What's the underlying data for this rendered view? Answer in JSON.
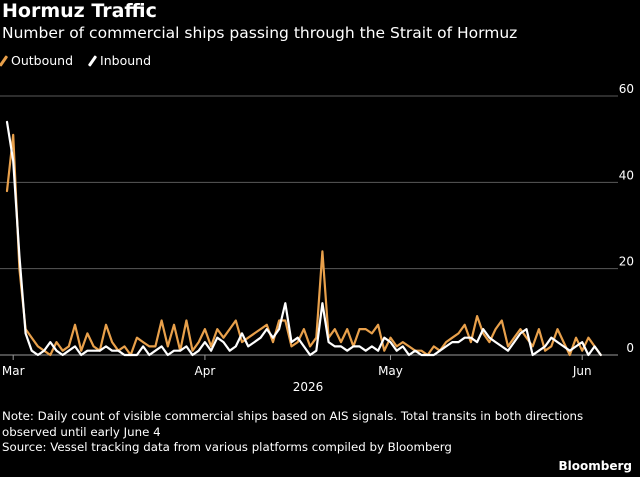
{
  "title": "Hormuz Traffic",
  "subtitle": "Number of commercial ships passing through the Strait of Hormuz",
  "legend": [
    {
      "label": "Outbound",
      "color": "#e8a04b"
    },
    {
      "label": "Inbound",
      "color": "#ffffff"
    }
  ],
  "note": "Note: Daily count of visible commercial ships based on AIS signals. Total transits in both directions observed until early June 4",
  "source": "Source: Vessel tracking data from various platforms compiled by Bloomberg",
  "brand": "Bloomberg",
  "chart_data": {
    "type": "line",
    "year_label": "2026",
    "x_ticks": [
      "Mar",
      "Apr",
      "May",
      "Jun"
    ],
    "y_ticks": [
      0,
      20,
      40,
      60
    ],
    "ylim": [
      0,
      60
    ],
    "grid": true,
    "legend_position": "top-left",
    "x": [
      "2026-02-28",
      "2026-03-01",
      "2026-03-02",
      "2026-03-03",
      "2026-03-04",
      "2026-03-05",
      "2026-03-06",
      "2026-03-07",
      "2026-03-08",
      "2026-03-09",
      "2026-03-10",
      "2026-03-11",
      "2026-03-12",
      "2026-03-13",
      "2026-03-14",
      "2026-03-15",
      "2026-03-16",
      "2026-03-17",
      "2026-03-18",
      "2026-03-19",
      "2026-03-20",
      "2026-03-21",
      "2026-03-22",
      "2026-03-23",
      "2026-03-24",
      "2026-03-25",
      "2026-03-26",
      "2026-03-27",
      "2026-03-28",
      "2026-03-29",
      "2026-03-30",
      "2026-03-31",
      "2026-04-01",
      "2026-04-02",
      "2026-04-03",
      "2026-04-04",
      "2026-04-05",
      "2026-04-06",
      "2026-04-07",
      "2026-04-08",
      "2026-04-09",
      "2026-04-10",
      "2026-04-11",
      "2026-04-12",
      "2026-04-13",
      "2026-04-14",
      "2026-04-15",
      "2026-04-16",
      "2026-04-17",
      "2026-04-18",
      "2026-04-19",
      "2026-04-20",
      "2026-04-21",
      "2026-04-22",
      "2026-04-23",
      "2026-04-24",
      "2026-04-25",
      "2026-04-26",
      "2026-04-27",
      "2026-04-28",
      "2026-04-29",
      "2026-04-30",
      "2026-05-01",
      "2026-05-02",
      "2026-05-03",
      "2026-05-04",
      "2026-05-05",
      "2026-05-06",
      "2026-05-07",
      "2026-05-08",
      "2026-05-09",
      "2026-05-10",
      "2026-05-11",
      "2026-05-12",
      "2026-05-13",
      "2026-05-14",
      "2026-05-15",
      "2026-05-16",
      "2026-05-17",
      "2026-05-18",
      "2026-05-19",
      "2026-05-20",
      "2026-05-21",
      "2026-05-22",
      "2026-05-23",
      "2026-05-24",
      "2026-05-25",
      "2026-05-26",
      "2026-05-27",
      "2026-05-28",
      "2026-05-29",
      "2026-05-30",
      "2026-05-31",
      "2026-06-01",
      "2026-06-02",
      "2026-06-03",
      "2026-06-04"
    ],
    "series": [
      {
        "name": "Outbound",
        "color": "#e8a04b",
        "values": [
          38,
          51,
          20,
          6,
          4,
          2,
          1,
          0,
          3,
          1,
          2,
          7,
          1,
          5,
          2,
          1,
          7,
          3,
          1,
          2,
          0,
          4,
          3,
          2,
          2,
          8,
          2,
          7,
          1,
          8,
          1,
          3,
          6,
          2,
          6,
          4,
          6,
          8,
          3,
          4,
          5,
          6,
          7,
          3,
          8,
          8,
          2,
          3,
          6,
          2,
          4,
          24,
          4,
          6,
          3,
          6,
          2,
          6,
          6,
          5,
          7,
          1,
          4,
          2,
          3,
          2,
          1,
          1,
          0,
          2,
          1,
          3,
          4,
          5,
          7,
          3,
          9,
          5,
          3,
          6,
          8,
          2,
          4,
          6,
          4,
          2,
          6,
          1,
          2,
          6,
          3,
          0,
          4,
          1,
          4,
          2,
          0
        ]
      },
      {
        "name": "Inbound",
        "color": "#ffffff",
        "values": [
          54,
          45,
          23,
          5,
          1,
          0,
          1,
          3,
          1,
          0,
          1,
          2,
          0,
          1,
          1,
          1,
          2,
          1,
          1,
          0,
          0,
          0,
          2,
          0,
          1,
          2,
          0,
          1,
          1,
          2,
          0,
          1,
          3,
          1,
          4,
          3,
          1,
          2,
          5,
          2,
          3,
          4,
          6,
          4,
          6,
          12,
          3,
          4,
          2,
          0,
          1,
          12,
          3,
          2,
          2,
          1,
          2,
          2,
          1,
          2,
          1,
          4,
          3,
          1,
          2,
          0,
          1,
          0,
          0,
          0,
          1,
          2,
          3,
          3,
          4,
          4,
          3,
          6,
          4,
          3,
          2,
          1,
          3,
          5,
          6,
          0,
          1,
          2,
          4,
          3,
          2,
          1,
          2,
          3,
          0,
          2,
          0
        ]
      }
    ]
  }
}
